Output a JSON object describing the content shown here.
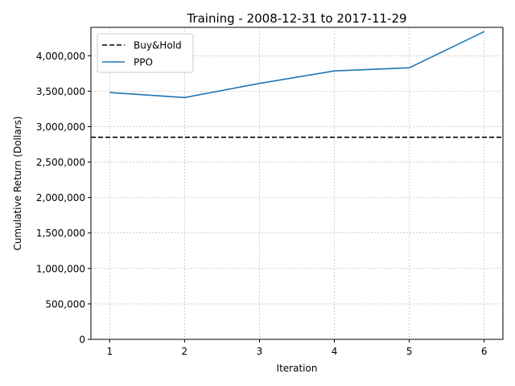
{
  "chart_data": {
    "type": "line",
    "title": "Training - 2008-12-31 to 2017-11-29",
    "xlabel": "Iteration",
    "ylabel": "Cumulative Return (Dollars)",
    "x": [
      1,
      2,
      3,
      4,
      5,
      6
    ],
    "xlim": [
      0.75,
      6.25
    ],
    "ylim": [
      0,
      4400000
    ],
    "x_ticks": [
      1,
      2,
      3,
      4,
      5,
      6
    ],
    "x_tick_labels": [
      "1",
      "2",
      "3",
      "4",
      "5",
      "6"
    ],
    "y_ticks": [
      0,
      500000,
      1000000,
      1500000,
      2000000,
      2500000,
      3000000,
      3500000,
      4000000
    ],
    "y_tick_labels": [
      "0",
      "500,000",
      "1,000,000",
      "1,500,000",
      "2,000,000",
      "2,500,000",
      "3,000,000",
      "3,500,000",
      "4,000,000"
    ],
    "grid": true,
    "legend_position": "top-left",
    "series": [
      {
        "name": "PPO",
        "values": [
          3480000,
          3410000,
          3610000,
          3785000,
          3830000,
          4340000
        ],
        "color": "#1f77b4",
        "style": "solid"
      }
    ],
    "hlines": [
      {
        "name": "Buy&Hold",
        "value": 2850000,
        "color": "#000000",
        "style": "dashed"
      }
    ],
    "legend": [
      "Buy&Hold",
      "PPO"
    ]
  }
}
